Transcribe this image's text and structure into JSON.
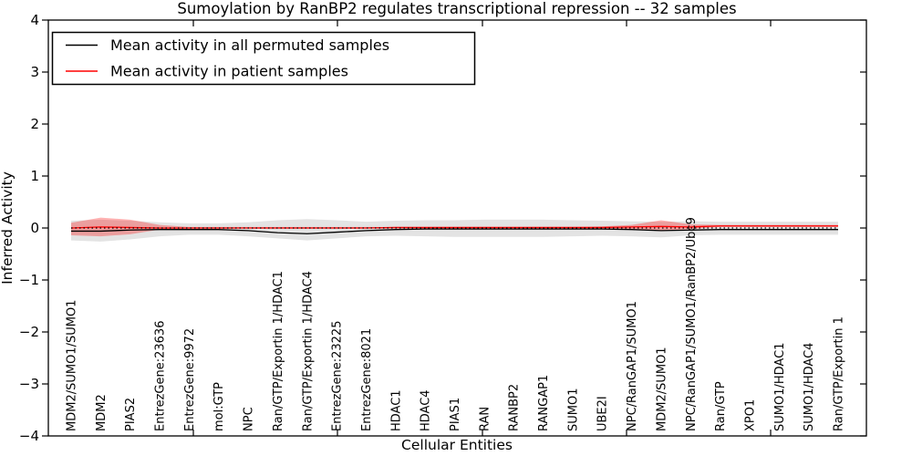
{
  "figure": {
    "title": "Sumoylation by RanBP2 regulates transcriptional repression -- 32 samples",
    "xlabel": "Cellular Entities",
    "ylabel": "Inferred Activity"
  },
  "chart_data": {
    "type": "line",
    "title": "Sumoylation by RanBP2 regulates transcriptional repression -- 32 samples",
    "xlabel": "Cellular Entities",
    "ylabel": "Inferred Activity",
    "ylim": [
      -4,
      4
    ],
    "yticks": [
      4,
      3,
      2,
      1,
      0,
      -1,
      -2,
      -3,
      -4
    ],
    "grid": false,
    "legend_position": "upper left",
    "zero_reference_line": 0,
    "categories": [
      "MDM2/SUMO1/SUMO1",
      "MDM2",
      "PIAS2",
      "EntrezGene:23636",
      "EntrezGene:9972",
      "mol:GTP",
      "NPC",
      "Ran/GTP/Exportin 1/HDAC1",
      "Ran/GTP/Exportin 1/HDAC4",
      "EntrezGene:23225",
      "EntrezGene:8021",
      "HDAC1",
      "HDAC4",
      "PIAS1",
      "RAN",
      "RANBP2",
      "RANGAP1",
      "SUMO1",
      "UBE2I",
      "NPC/RanGAP1/SUMO1",
      "MDM2/SUMO1",
      "NPC/RanGAP1/SUMO1/RanBP2/Ubc9",
      "Ran/GTP",
      "XPO1",
      "SUMO1/HDAC1",
      "SUMO1/HDAC4",
      "Ran/GTP/Exportin 1"
    ],
    "series": [
      {
        "name": "Mean activity in all permuted samples",
        "color": "#000000",
        "style": "solid",
        "values": [
          -0.06,
          -0.06,
          -0.04,
          -0.03,
          -0.03,
          -0.03,
          -0.05,
          -0.09,
          -0.11,
          -0.08,
          -0.05,
          -0.03,
          -0.02,
          -0.02,
          -0.02,
          -0.02,
          -0.02,
          -0.02,
          -0.02,
          -0.03,
          -0.05,
          -0.04,
          -0.03,
          -0.03,
          -0.03,
          -0.03,
          -0.03
        ]
      },
      {
        "name": "Mean activity in patient samples",
        "color": "#ff0000",
        "style": "solid",
        "values": [
          0.0,
          0.02,
          0.01,
          0.0,
          0.0,
          0.0,
          0.0,
          0.0,
          0.0,
          0.0,
          0.0,
          0.01,
          0.01,
          0.01,
          0.01,
          0.01,
          0.01,
          0.01,
          0.01,
          0.02,
          0.03,
          0.02,
          0.04,
          0.04,
          0.04,
          0.04,
          0.04
        ]
      }
    ],
    "bands": [
      {
        "name": "permuted samples spread",
        "color": "#999999",
        "opacity": 0.28,
        "upper": [
          0.14,
          0.16,
          0.14,
          0.11,
          0.09,
          0.09,
          0.11,
          0.15,
          0.17,
          0.15,
          0.12,
          0.14,
          0.15,
          0.15,
          0.16,
          0.16,
          0.16,
          0.15,
          0.14,
          0.13,
          0.12,
          0.13,
          0.12,
          0.12,
          0.12,
          0.12,
          0.12
        ],
        "lower": [
          -0.24,
          -0.26,
          -0.22,
          -0.16,
          -0.13,
          -0.13,
          -0.16,
          -0.2,
          -0.24,
          -0.2,
          -0.16,
          -0.15,
          -0.16,
          -0.17,
          -0.17,
          -0.17,
          -0.17,
          -0.16,
          -0.15,
          -0.16,
          -0.18,
          -0.14,
          -0.13,
          -0.13,
          -0.13,
          -0.13,
          -0.13
        ]
      },
      {
        "name": "patient samples spread",
        "color": "#ff0000",
        "opacity": 0.3,
        "upper": [
          0.1,
          0.2,
          0.16,
          0.06,
          0.02,
          0.02,
          0.02,
          0.02,
          0.02,
          0.02,
          0.02,
          0.02,
          0.02,
          0.02,
          0.02,
          0.02,
          0.02,
          0.02,
          0.03,
          0.06,
          0.15,
          0.07,
          0.06,
          0.06,
          0.06,
          0.06,
          0.06
        ],
        "lower": [
          -0.14,
          -0.16,
          -0.12,
          -0.03,
          -0.01,
          -0.01,
          -0.01,
          -0.01,
          -0.01,
          -0.01,
          -0.01,
          -0.01,
          -0.01,
          -0.01,
          -0.01,
          -0.01,
          -0.01,
          -0.01,
          -0.01,
          -0.03,
          -0.06,
          -0.02,
          0.02,
          0.02,
          0.02,
          0.02,
          0.02
        ]
      }
    ]
  }
}
